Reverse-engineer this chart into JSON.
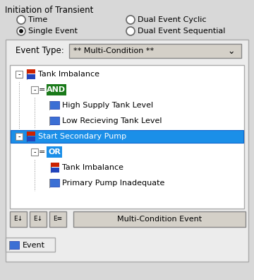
{
  "title": "Initiation of Transient",
  "radio_options": [
    {
      "label": "Time",
      "col": 0,
      "row": 0,
      "selected": false
    },
    {
      "label": "Single Event",
      "col": 0,
      "row": 1,
      "selected": true
    },
    {
      "label": "Dual Event Cyclic",
      "col": 1,
      "row": 0,
      "selected": false
    },
    {
      "label": "Dual Event Sequential",
      "col": 1,
      "row": 1,
      "selected": false
    }
  ],
  "event_type_label": "Event Type:",
  "event_type_value": "** Multi-Condition **",
  "bg_color": "#d8d8d8",
  "panel_bg": "#ececec",
  "tree_bg": "#ffffff",
  "tree_items": [
    {
      "level": 0,
      "text": "Tank Imbalance",
      "type": "event",
      "selected": false
    },
    {
      "level": 1,
      "text": "AND",
      "type": "and",
      "selected": false
    },
    {
      "level": 2,
      "text": "High Supply Tank Level",
      "type": "condition",
      "selected": false
    },
    {
      "level": 2,
      "text": "Low Recieving Tank Level",
      "type": "condition",
      "selected": false
    },
    {
      "level": 0,
      "text": "Start Secondary Pump",
      "type": "event",
      "selected": true
    },
    {
      "level": 1,
      "text": "OR",
      "type": "or",
      "selected": false
    },
    {
      "level": 2,
      "text": "Tank Imbalance",
      "type": "event_ref",
      "selected": false
    },
    {
      "level": 2,
      "text": "Primary Pump Inadequate",
      "type": "condition",
      "selected": false
    }
  ],
  "tab_label": "Event",
  "selected_highlight": "#1b8fe8",
  "selected_text_color": "#ffffff",
  "and_color": "#1a7a1a",
  "or_color": "#1b8fe8",
  "multi_condition_btn": "Multi-Condition Event"
}
